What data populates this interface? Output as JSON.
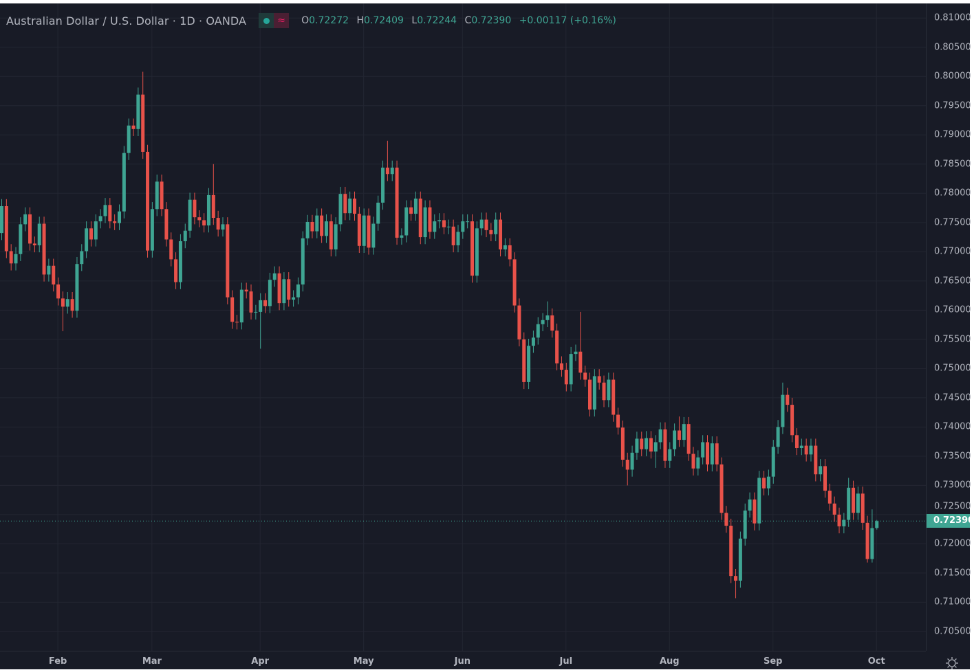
{
  "header": {
    "symbol_title": "Australian Dollar / U.S. Dollar · 1D · OANDA",
    "ohlc": {
      "o_label": "O",
      "o": "0.72272",
      "h_label": "H",
      "h": "0.72409",
      "l_label": "L",
      "l": "0.72244",
      "c_label": "C",
      "c": "0.72390",
      "change": "+0.00117 (+0.16%)"
    },
    "market_status_icon": "green-dot-icon",
    "indicator_icon": "approx-wave-icon"
  },
  "last_price_label": "0.72390",
  "settings_icon": "sun-gear-icon",
  "colors": {
    "background": "#181b26",
    "up": "#3fa593",
    "down": "#e8524a",
    "grid": "#232632",
    "text": "#b2b5be"
  },
  "chart_data": {
    "type": "candlestick",
    "title": "Australian Dollar / U.S. Dollar · 1D · OANDA",
    "ylim": [
      0.7017,
      0.8125
    ],
    "grid": true,
    "y_ticks": [
      "0.81000",
      "0.80500",
      "0.80000",
      "0.79500",
      "0.79000",
      "0.78500",
      "0.78000",
      "0.77500",
      "0.77000",
      "0.76500",
      "0.76000",
      "0.75500",
      "0.75000",
      "0.74500",
      "0.74000",
      "0.73500",
      "0.73000",
      "0.72500",
      "0.72000",
      "0.71500",
      "0.71000",
      "0.70500"
    ],
    "x_ticks": [
      {
        "label": "Feb",
        "index": 12
      },
      {
        "label": "Mar",
        "index": 32
      },
      {
        "label": "Apr",
        "index": 55
      },
      {
        "label": "May",
        "index": 77
      },
      {
        "label": "Jun",
        "index": 98
      },
      {
        "label": "Jul",
        "index": 120
      },
      {
        "label": "Aug",
        "index": 142
      },
      {
        "label": "Sep",
        "index": 164
      },
      {
        "label": "Oct",
        "index": 186
      }
    ],
    "last_price": 0.7239,
    "open": [
      0.7732,
      0.7778,
      0.7701,
      0.768,
      0.7696,
      0.7747,
      0.7764,
      0.7714,
      0.7711,
      0.7748,
      0.7661,
      0.7676,
      0.7644,
      0.762,
      0.7606,
      0.7619,
      0.7599,
      0.7679,
      0.7701,
      0.774,
      0.7721,
      0.7752,
      0.7761,
      0.778,
      0.7752,
      0.7749,
      0.7769,
      0.7869,
      0.7916,
      0.791,
      0.7969,
      0.7871,
      0.7702,
      0.7773,
      0.782,
      0.7773,
      0.7721,
      0.7687,
      0.7648,
      0.7718,
      0.7736,
      0.7789,
      0.7759,
      0.7754,
      0.7745,
      0.7797,
      0.7758,
      0.7738,
      0.7747,
      0.7622,
      0.758,
      0.7579,
      0.7635,
      0.7632,
      0.7596,
      0.7597,
      0.7617,
      0.7607,
      0.7652,
      0.7663,
      0.7612,
      0.7653,
      0.7618,
      0.7622,
      0.7644,
      0.7723,
      0.7751,
      0.7735,
      0.7762,
      0.7727,
      0.7752,
      0.7704,
      0.7747,
      0.7799,
      0.7766,
      0.7791,
      0.7765,
      0.771,
      0.7762,
      0.7707,
      0.7748,
      0.7784,
      0.7844,
      0.7833,
      0.7844,
      0.7724,
      0.7728,
      0.7776,
      0.7765,
      0.7791,
      0.7725,
      0.7776,
      0.7734,
      0.7752,
      0.7754,
      0.7742,
      0.7743,
      0.7711,
      0.7734,
      0.7752,
      0.7752,
      0.7659,
      0.774,
      0.7755,
      0.7737,
      0.773,
      0.7755,
      0.7704,
      0.7711,
      0.7687,
      0.7608,
      0.755,
      0.7477,
      0.7539,
      0.7553,
      0.7576,
      0.7583,
      0.7591,
      0.7565,
      0.7509,
      0.7498,
      0.7473,
      0.7525,
      0.7529,
      0.7493,
      0.7481,
      0.743,
      0.7487,
      0.7476,
      0.7446,
      0.7481,
      0.7421,
      0.7399,
      0.7344,
      0.7327,
      0.7356,
      0.738,
      0.7362,
      0.7381,
      0.7358,
      0.7374,
      0.7396,
      0.7342,
      0.7362,
      0.7394,
      0.7378,
      0.7405,
      0.7354,
      0.7329,
      0.7348,
      0.7374,
      0.7336,
      0.7372,
      0.7336,
      0.7253,
      0.7231,
      0.7145,
      0.7137,
      0.7209,
      0.7257,
      0.7276,
      0.7235,
      0.7313,
      0.7295,
      0.7315,
      0.7366,
      0.74,
      0.7455,
      0.7438,
      0.7386,
      0.7364,
      0.7368,
      0.7353,
      0.7368,
      0.7319,
      0.7333,
      0.7291,
      0.7269,
      0.725,
      0.723,
      0.7241,
      0.7296,
      0.7253,
      0.7286,
      0.7236,
      0.7174,
      0.72272
    ],
    "high": [
      0.779,
      0.779,
      0.7713,
      0.7708,
      0.7759,
      0.7776,
      0.7776,
      0.7726,
      0.776,
      0.776,
      0.7688,
      0.7688,
      0.7656,
      0.7632,
      0.7631,
      0.7631,
      0.7691,
      0.7713,
      0.7752,
      0.7752,
      0.7764,
      0.7773,
      0.7792,
      0.7792,
      0.7764,
      0.7781,
      0.7881,
      0.7928,
      0.7928,
      0.7981,
      0.8008,
      0.7883,
      0.7785,
      0.7832,
      0.7832,
      0.7785,
      0.7733,
      0.7699,
      0.773,
      0.7748,
      0.7801,
      0.7801,
      0.7771,
      0.7766,
      0.7809,
      0.785,
      0.777,
      0.7759,
      0.7759,
      0.7634,
      0.7592,
      0.7647,
      0.7647,
      0.7644,
      0.7609,
      0.7629,
      0.7629,
      0.7664,
      0.7675,
      0.7675,
      0.7665,
      0.7665,
      0.7634,
      0.7656,
      0.7735,
      0.7763,
      0.7763,
      0.7774,
      0.7774,
      0.7764,
      0.7764,
      0.7759,
      0.7811,
      0.7811,
      0.7803,
      0.7803,
      0.7777,
      0.7774,
      0.7774,
      0.776,
      0.7796,
      0.7856,
      0.789,
      0.7856,
      0.7856,
      0.774,
      0.7788,
      0.7788,
      0.7803,
      0.7803,
      0.7788,
      0.7788,
      0.7764,
      0.7766,
      0.7766,
      0.7755,
      0.7755,
      0.7746,
      0.7764,
      0.7764,
      0.7764,
      0.7752,
      0.7767,
      0.7767,
      0.7749,
      0.7767,
      0.7767,
      0.7723,
      0.7723,
      0.7699,
      0.762,
      0.7562,
      0.7551,
      0.7565,
      0.7588,
      0.7595,
      0.7615,
      0.7603,
      0.7577,
      0.7521,
      0.751,
      0.7537,
      0.7541,
      0.7597,
      0.7505,
      0.7493,
      0.7499,
      0.7499,
      0.7488,
      0.7493,
      0.7493,
      0.7433,
      0.7411,
      0.7356,
      0.7368,
      0.7392,
      0.7392,
      0.7393,
      0.7393,
      0.7386,
      0.7408,
      0.7408,
      0.7374,
      0.7406,
      0.7418,
      0.7417,
      0.7417,
      0.7366,
      0.736,
      0.7386,
      0.7386,
      0.7384,
      0.7384,
      0.7348,
      0.7265,
      0.7243,
      0.7157,
      0.7221,
      0.7269,
      0.7288,
      0.7288,
      0.7325,
      0.7325,
      0.7327,
      0.7378,
      0.7412,
      0.7476,
      0.7467,
      0.745,
      0.7398,
      0.738,
      0.738,
      0.738,
      0.738,
      0.7345,
      0.7345,
      0.7303,
      0.7281,
      0.7262,
      0.7253,
      0.7313,
      0.7308,
      0.7298,
      0.7298,
      0.7248,
      0.7259,
      0.72409
    ],
    "low": [
      0.772,
      0.7689,
      0.7668,
      0.7668,
      0.7684,
      0.7735,
      0.7702,
      0.7699,
      0.7699,
      0.7649,
      0.7649,
      0.7632,
      0.7608,
      0.7564,
      0.7594,
      0.7587,
      0.7587,
      0.7667,
      0.7689,
      0.7709,
      0.7709,
      0.774,
      0.7749,
      0.774,
      0.7737,
      0.7737,
      0.7757,
      0.7857,
      0.7898,
      0.7898,
      0.7859,
      0.769,
      0.769,
      0.7761,
      0.7761,
      0.7709,
      0.7675,
      0.7636,
      0.7636,
      0.7706,
      0.7724,
      0.7747,
      0.7742,
      0.7733,
      0.7733,
      0.7746,
      0.7726,
      0.7726,
      0.761,
      0.7568,
      0.7567,
      0.7567,
      0.762,
      0.7584,
      0.7584,
      0.7534,
      0.7595,
      0.7595,
      0.764,
      0.76,
      0.76,
      0.7606,
      0.7606,
      0.761,
      0.7632,
      0.7711,
      0.7723,
      0.7723,
      0.7715,
      0.7715,
      0.7692,
      0.7692,
      0.7735,
      0.7754,
      0.7754,
      0.7753,
      0.7698,
      0.7698,
      0.7695,
      0.7695,
      0.7736,
      0.7772,
      0.7821,
      0.7821,
      0.7712,
      0.7712,
      0.7716,
      0.7753,
      0.7753,
      0.7713,
      0.7713,
      0.7722,
      0.7722,
      0.774,
      0.773,
      0.773,
      0.7699,
      0.7699,
      0.7722,
      0.774,
      0.7647,
      0.7647,
      0.7728,
      0.7725,
      0.7718,
      0.7718,
      0.7692,
      0.7692,
      0.7675,
      0.7596,
      0.7538,
      0.7465,
      0.7465,
      0.7527,
      0.7541,
      0.7564,
      0.7571,
      0.7553,
      0.7497,
      0.7486,
      0.7461,
      0.7461,
      0.7513,
      0.7481,
      0.7469,
      0.7418,
      0.7418,
      0.7464,
      0.7434,
      0.7434,
      0.7409,
      0.7387,
      0.7332,
      0.73,
      0.7315,
      0.7344,
      0.735,
      0.735,
      0.7346,
      0.733,
      0.7362,
      0.733,
      0.733,
      0.735,
      0.7366,
      0.7366,
      0.7342,
      0.7317,
      0.7317,
      0.7336,
      0.7324,
      0.7324,
      0.7324,
      0.7241,
      0.7219,
      0.7133,
      0.7107,
      0.7125,
      0.7197,
      0.7245,
      0.7223,
      0.7223,
      0.7283,
      0.7283,
      0.7303,
      0.7354,
      0.7388,
      0.7426,
      0.7374,
      0.7352,
      0.7352,
      0.7341,
      0.7341,
      0.7307,
      0.7307,
      0.7279,
      0.7257,
      0.7238,
      0.7218,
      0.7218,
      0.7229,
      0.7241,
      0.7241,
      0.7224,
      0.7168,
      0.7168,
      0.72244
    ],
    "close": [
      0.7778,
      0.7701,
      0.768,
      0.7696,
      0.7747,
      0.7764,
      0.7714,
      0.7711,
      0.7748,
      0.7661,
      0.7676,
      0.7644,
      0.762,
      0.7606,
      0.7619,
      0.7599,
      0.7679,
      0.7701,
      0.774,
      0.7721,
      0.7752,
      0.7761,
      0.778,
      0.7752,
      0.7749,
      0.7769,
      0.7869,
      0.7916,
      0.791,
      0.7969,
      0.7871,
      0.7702,
      0.7773,
      0.782,
      0.7773,
      0.7721,
      0.7687,
      0.7648,
      0.7718,
      0.7736,
      0.7789,
      0.7759,
      0.7754,
      0.7745,
      0.7797,
      0.7758,
      0.7738,
      0.7747,
      0.7622,
      0.758,
      0.7579,
      0.7635,
      0.7632,
      0.7596,
      0.7597,
      0.7617,
      0.7607,
      0.7652,
      0.7663,
      0.7612,
      0.7653,
      0.7618,
      0.7622,
      0.7644,
      0.7723,
      0.7751,
      0.7735,
      0.7762,
      0.7727,
      0.7752,
      0.7704,
      0.7747,
      0.7799,
      0.7766,
      0.7791,
      0.7765,
      0.771,
      0.7762,
      0.7707,
      0.7748,
      0.7784,
      0.7844,
      0.7833,
      0.7844,
      0.7724,
      0.7728,
      0.7776,
      0.7765,
      0.7791,
      0.7725,
      0.7776,
      0.7734,
      0.7752,
      0.7754,
      0.7742,
      0.7743,
      0.7711,
      0.7734,
      0.7752,
      0.7752,
      0.7659,
      0.774,
      0.7755,
      0.7737,
      0.773,
      0.7755,
      0.7704,
      0.7711,
      0.7687,
      0.7608,
      0.755,
      0.7477,
      0.7539,
      0.7553,
      0.7576,
      0.7583,
      0.7591,
      0.7565,
      0.7509,
      0.7498,
      0.7473,
      0.7525,
      0.7529,
      0.7493,
      0.7481,
      0.743,
      0.7487,
      0.7476,
      0.7446,
      0.7481,
      0.7421,
      0.7399,
      0.7344,
      0.7327,
      0.7356,
      0.738,
      0.7362,
      0.7381,
      0.7358,
      0.7374,
      0.7396,
      0.7342,
      0.7362,
      0.7394,
      0.7378,
      0.7405,
      0.7354,
      0.7329,
      0.7348,
      0.7374,
      0.7336,
      0.7372,
      0.7336,
      0.7253,
      0.7231,
      0.7145,
      0.7137,
      0.7209,
      0.7257,
      0.7276,
      0.7235,
      0.7313,
      0.7295,
      0.7315,
      0.7366,
      0.74,
      0.7455,
      0.7438,
      0.7386,
      0.7364,
      0.7368,
      0.7353,
      0.7368,
      0.7319,
      0.7333,
      0.7291,
      0.7269,
      0.725,
      0.723,
      0.7241,
      0.7296,
      0.7253,
      0.7286,
      0.7236,
      0.7174,
      0.7227,
      0.7239
    ]
  }
}
